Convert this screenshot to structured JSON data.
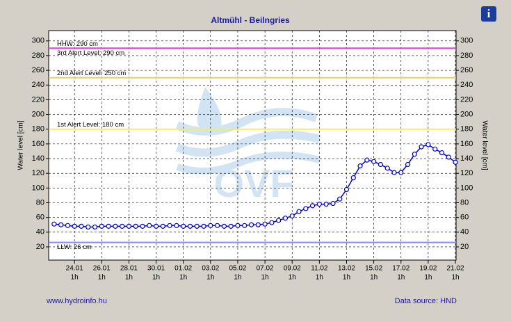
{
  "chart_data": {
    "type": "line",
    "title": "Altmühl - Beilngries",
    "y_label": "Water level [cm]",
    "y2_label": "Water level [cm]",
    "watermark": "OVF",
    "footer_left": "www.hydroinfo.hu",
    "footer_right": "Data source: HND",
    "info_icon": "i",
    "x": [
      -1.5,
      -1,
      -0.5,
      0,
      0.5,
      1,
      1.5,
      2,
      2.5,
      3,
      3.5,
      4,
      4.5,
      5,
      5.5,
      6,
      6.5,
      7,
      7.5,
      8,
      8.5,
      9,
      9.5,
      10,
      10.5,
      11,
      11.5,
      12,
      12.5,
      13,
      13.5,
      14,
      14.5,
      15,
      15.5,
      16,
      16.5,
      17,
      17.5,
      18,
      18.5,
      19,
      19.5,
      20,
      20.5,
      21,
      21.5,
      22,
      22.5,
      23,
      23.5,
      24,
      24.5,
      25,
      25.5,
      26,
      26.5,
      27,
      27.5,
      28
    ],
    "series": [
      {
        "name": "Water level",
        "color": "#0000c8",
        "values": [
          51,
          50,
          49,
          48,
          48,
          47,
          47,
          48,
          48,
          48,
          48,
          48,
          48,
          48,
          49,
          48,
          48,
          49,
          49,
          48,
          48,
          48,
          48,
          49,
          49,
          48,
          48,
          49,
          49,
          50,
          50,
          51,
          53,
          56,
          59,
          62,
          68,
          72,
          76,
          78,
          78,
          79,
          85,
          98,
          114,
          130,
          138,
          136,
          132,
          127,
          121,
          121,
          132,
          146,
          156,
          159,
          153,
          148,
          142,
          135
        ]
      }
    ],
    "xlim": [
      -1.9,
      28.05
    ],
    "xticks": [
      {
        "value": 0,
        "label": "24.01"
      },
      {
        "value": 2,
        "label": "26.01"
      },
      {
        "value": 4,
        "label": "28.01"
      },
      {
        "value": 6,
        "label": "30.01"
      },
      {
        "value": 8,
        "label": "01.02"
      },
      {
        "value": 10,
        "label": "03.02"
      },
      {
        "value": 12,
        "label": "05.02"
      },
      {
        "value": 14,
        "label": "07.02"
      },
      {
        "value": 16,
        "label": "09.02"
      },
      {
        "value": 18,
        "label": "11.02"
      },
      {
        "value": 20,
        "label": "13.02"
      },
      {
        "value": 22,
        "label": "15.02"
      },
      {
        "value": 24,
        "label": "17.02"
      },
      {
        "value": 26,
        "label": "19.02"
      },
      {
        "value": 28,
        "label": "21.02"
      }
    ],
    "xtick_sublabel": "1h",
    "ylim": [
      2,
      314
    ],
    "yticks": [
      20,
      40,
      60,
      80,
      100,
      120,
      140,
      160,
      180,
      200,
      220,
      240,
      260,
      280,
      300
    ],
    "y2lim": [
      2,
      314
    ],
    "y2ticks": [
      20,
      40,
      60,
      80,
      100,
      120,
      140,
      160,
      180,
      200,
      220,
      240,
      260,
      280,
      300
    ],
    "grid": true,
    "levels": [
      {
        "label": "HHW: 290 cm",
        "value": 290,
        "color": "#e040e0",
        "label_position": "above"
      },
      {
        "label": "3rd Alert Level: 290 cm",
        "value": 290,
        "color": "#e040e0",
        "label_position": "below"
      },
      {
        "label": "2nd Alert Level: 250 cm",
        "value": 250,
        "color": "#e8d070",
        "label_position": "above"
      },
      {
        "label": "1st Alert Level: 180 cm",
        "value": 180,
        "color": "#f0f060",
        "label_position": "above"
      },
      {
        "label": "LLW: 26 cm",
        "value": 26,
        "color": "#8888ff",
        "label_position": "below"
      }
    ]
  }
}
